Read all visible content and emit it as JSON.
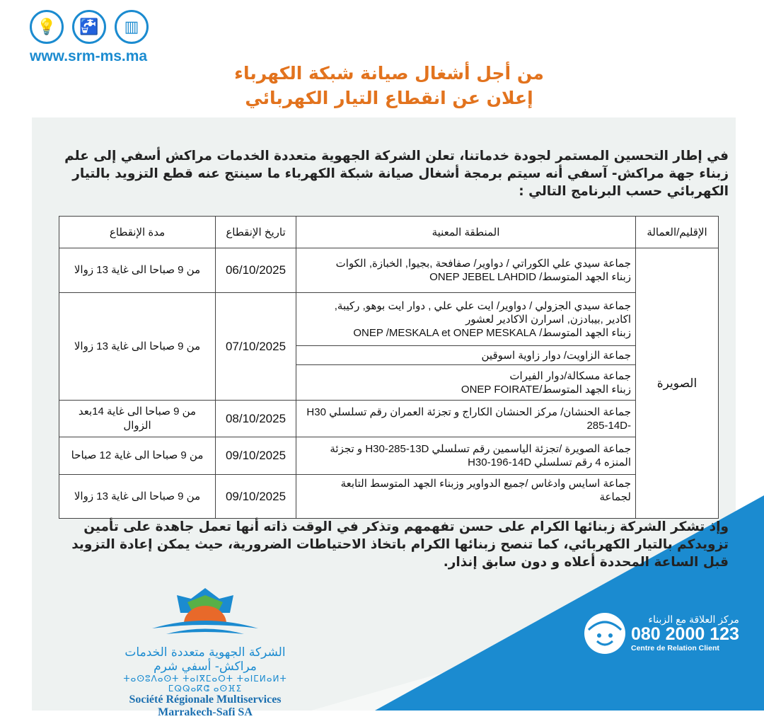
{
  "header": {
    "website": "www.srm-ms.ma",
    "icons": [
      "lightbulb-icon",
      "water-tap-icon",
      "meter-icon"
    ]
  },
  "title": {
    "line1": "من أجل أشغال صيانة شبكة الكهرباء",
    "line2": "إعلان عن انقطاع التيار الكهربائي"
  },
  "intro": "في إطار التحسين المستمر لجودة خدماتنا، تعلن الشركة الجهوية متعددة الخدمات مراكش أسفي إلى علم زبناء جهة مراكش- آسفي أنه سيتم برمجة أشغال صيانة شبكة الكهرباء ما سينتج عنه  قطع التزويد بالتيار الكهربائي حسب البرنامج التالي :",
  "table": {
    "headers": {
      "province": "الإقليم/العمالة",
      "area": "المنطقة المعنية",
      "date": "تاريخ الإنقطاع",
      "duration": "مدة الإنقطاع"
    },
    "province": "الصويرة",
    "rows": [
      {
        "area": [
          "جماعة سيدي علي الكوراتي / دواوير/ صفافحة ,بجيوا, الخبازة, الكوات",
          "زبناء الجهد المتوسط/    ONEP JEBEL LAHDID"
        ],
        "date": "06/10/2025",
        "duration": "من 9 صباحا الى غاية  13 زوالا"
      },
      {
        "area": [
          "جماعة سيدي  الجزولي / دواوير/ ايت علي علي , دوار ايت بوهو, ركيبة,",
          "اكادير ,بيبادزن, اسرارن الاكادير لعشور",
          "زبناء الجهد المتوسط/    ONEP /MESKALA et ONEP MESKALA"
        ],
        "date": "07/10/2025",
        "duration": "من 9 صباحا الى غاية  13 زوالا"
      },
      {
        "area": [
          "جماعة الزاويت/ دوار زاوية اسوقين"
        ]
      },
      {
        "area": [
          "جماعة مسكالة/دوار الفيرات",
          "زبناء الجهد المتوسط/ONEP FOIRATE"
        ]
      },
      {
        "area": [
          "جماعة الحنشان/ مركز الحنشان الكاراج و تجزئة العمران رقم تسلسلي  H30",
          "-285-14D"
        ],
        "date": "08/10/2025",
        "duration": "من 9 صباحا الى غاية   14بعد الزوال"
      },
      {
        "area": [
          "جماعة الصويرة /تجزئة الياسمين رقم تسلسلي  H30-285-13D  و تجزئة",
          "المنزه 4 رقم تسلسلي H30-196-14D"
        ],
        "date": "09/10/2025",
        "duration": "من 9 صباحا الى غاية  12 صباحا"
      },
      {
        "area": [
          "جماعة اسايس وادغاس /جميع الدواوير وزبناء الجهد المتوسط  التابعة",
          "لجماعة"
        ],
        "date": "09/10/2025",
        "duration": "من 9 صباحا الى غاية  13 زوالا"
      }
    ]
  },
  "closing": "وإذ تشكر الشركة زبنائها الكرام على حسن تفهمهم وتذكر في الوقت ذاته أنها تعمل جاهدة على تأمين تزويدكم بالتيار الكهربائي، كما تنصح زبنائها الكرام باتخاذ الاحتياطات الضرورية، حيث يمكن إعادة التزويد قبل الساعة المحددة أعلاه و دون سابق إنذار.",
  "logo": {
    "arabic": "الشركة الجهوية متعددة الخدمات مراكش- أسفي شرم",
    "tifinagh": "ⵜⴰⵙⵓⴷⴰⵙⵜ ⵜⴰⵏⴳⵎⴰⵔⵜ ⵜⴰⵏⵎⵍⴰⵍⵜ ⵎⵕⵕⴰⴽⵛ ⴰⵙⴼⵉ",
    "french": "Société Régionale Multiservices Marrakech-Safi SA"
  },
  "contact": {
    "label_ar": "مركز العلاقة مع الزبناء",
    "phone": "080 2000 123",
    "label_fr": "Centre de Relation Client"
  },
  "colors": {
    "brand_blue": "#1b8bd0",
    "title_orange": "#e2731e",
    "panel": "#eef2f1"
  }
}
